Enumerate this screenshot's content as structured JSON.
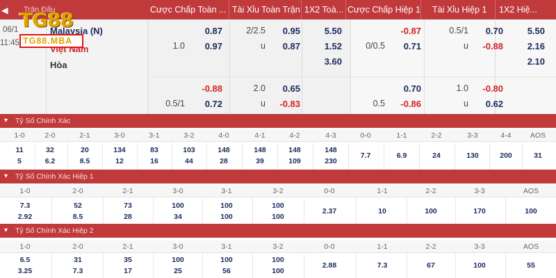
{
  "header": {
    "lead": "Trận Đấu",
    "columns": [
      "Cược Chấp Toàn ...",
      "Tài Xỉu Toàn Trận",
      "1X2 Toà...",
      "Cược Chấp Hiệp 1",
      "Tài Xỉu Hiệp 1",
      "1X2 Hiệ..."
    ]
  },
  "logo": {
    "brand": "TG88",
    "domain": "TG88.MBA"
  },
  "match": {
    "date": "06/1",
    "time": "11:45P",
    "home": "Malaysia (N)",
    "away": "Việt Nam",
    "draw": "Hòa",
    "ft_handicap": {
      "row1": {
        "line": "",
        "odds": "0.87"
      },
      "row2": {
        "line": "1.0",
        "odds": "0.97"
      },
      "row3": {
        "line": "",
        "odds": "-0.88"
      },
      "row4": {
        "line": "0.5/1",
        "odds": "0.72"
      }
    },
    "ft_over_under": {
      "row1": {
        "line": "2/2.5",
        "odds": "0.95"
      },
      "row2": {
        "line": "u",
        "odds": "0.87"
      },
      "row3": {
        "line": "2.0",
        "odds": "0.65"
      },
      "row4": {
        "line": "u",
        "odds": "-0.83"
      }
    },
    "ft_1x2": {
      "home": "5.50",
      "away": "1.52",
      "draw": "3.60"
    },
    "h1_handicap": {
      "row1": {
        "line": "",
        "odds": "-0.87"
      },
      "row2": {
        "line": "0/0.5",
        "odds": "0.71"
      },
      "row3": {
        "line": "",
        "odds": "0.70"
      },
      "row4": {
        "line": "0.5",
        "odds": "-0.86"
      }
    },
    "h1_over_under": {
      "row1": {
        "line": "0.5/1",
        "odds": "0.70"
      },
      "row2": {
        "line": "u",
        "odds": "-0.88"
      },
      "row3": {
        "line": "1.0",
        "odds": "-0.80"
      },
      "row4": {
        "line": "u",
        "odds": "0.62"
      }
    },
    "h1_1x2": {
      "home": "5.50",
      "away": "2.16",
      "draw": "2.10"
    }
  },
  "correct_score": {
    "title": "Tỷ Số Chính Xác",
    "headers": [
      "1-0",
      "2-0",
      "2-1",
      "3-0",
      "3-1",
      "3-2",
      "4-0",
      "4-1",
      "4-2",
      "4-3",
      "0-0",
      "1-1",
      "2-2",
      "3-3",
      "4-4",
      "AOS"
    ],
    "row1": [
      "11",
      "32",
      "20",
      "134",
      "83",
      "103",
      "148",
      "148",
      "148",
      "148"
    ],
    "row2": [
      "5",
      "6.2",
      "8.5",
      "12",
      "16",
      "44",
      "28",
      "39",
      "109",
      "230"
    ],
    "draws": [
      "7.7",
      "6.9",
      "24",
      "130",
      "200",
      "31"
    ]
  },
  "correct_score_h1": {
    "title": "Tỷ Số Chính Xác Hiệp 1",
    "headers": [
      "1-0",
      "2-0",
      "2-1",
      "3-0",
      "3-1",
      "3-2",
      "0-0",
      "1-1",
      "2-2",
      "3-3",
      "AOS"
    ],
    "row1": [
      "7.3",
      "52",
      "73",
      "100",
      "100",
      "100"
    ],
    "row2": [
      "2.92",
      "8.5",
      "28",
      "34",
      "100",
      "100"
    ],
    "draws": [
      "2.37",
      "10",
      "100",
      "170",
      "100"
    ]
  },
  "correct_score_h2": {
    "title": "Tỷ Số Chính Xác Hiệp 2",
    "headers": [
      "1-0",
      "2-0",
      "2-1",
      "3-0",
      "3-1",
      "3-2",
      "0-0",
      "1-1",
      "2-2",
      "3-3",
      "AOS"
    ],
    "row1": [
      "6.5",
      "31",
      "35",
      "100",
      "100",
      "100"
    ],
    "row2": [
      "3.25",
      "7.3",
      "17",
      "25",
      "56",
      "100"
    ],
    "draws": [
      "2.88",
      "7.3",
      "67",
      "100",
      "55"
    ]
  },
  "colors": {
    "header": "#c0393b",
    "positive": "#1a2a5c",
    "negative": "#d42323"
  }
}
